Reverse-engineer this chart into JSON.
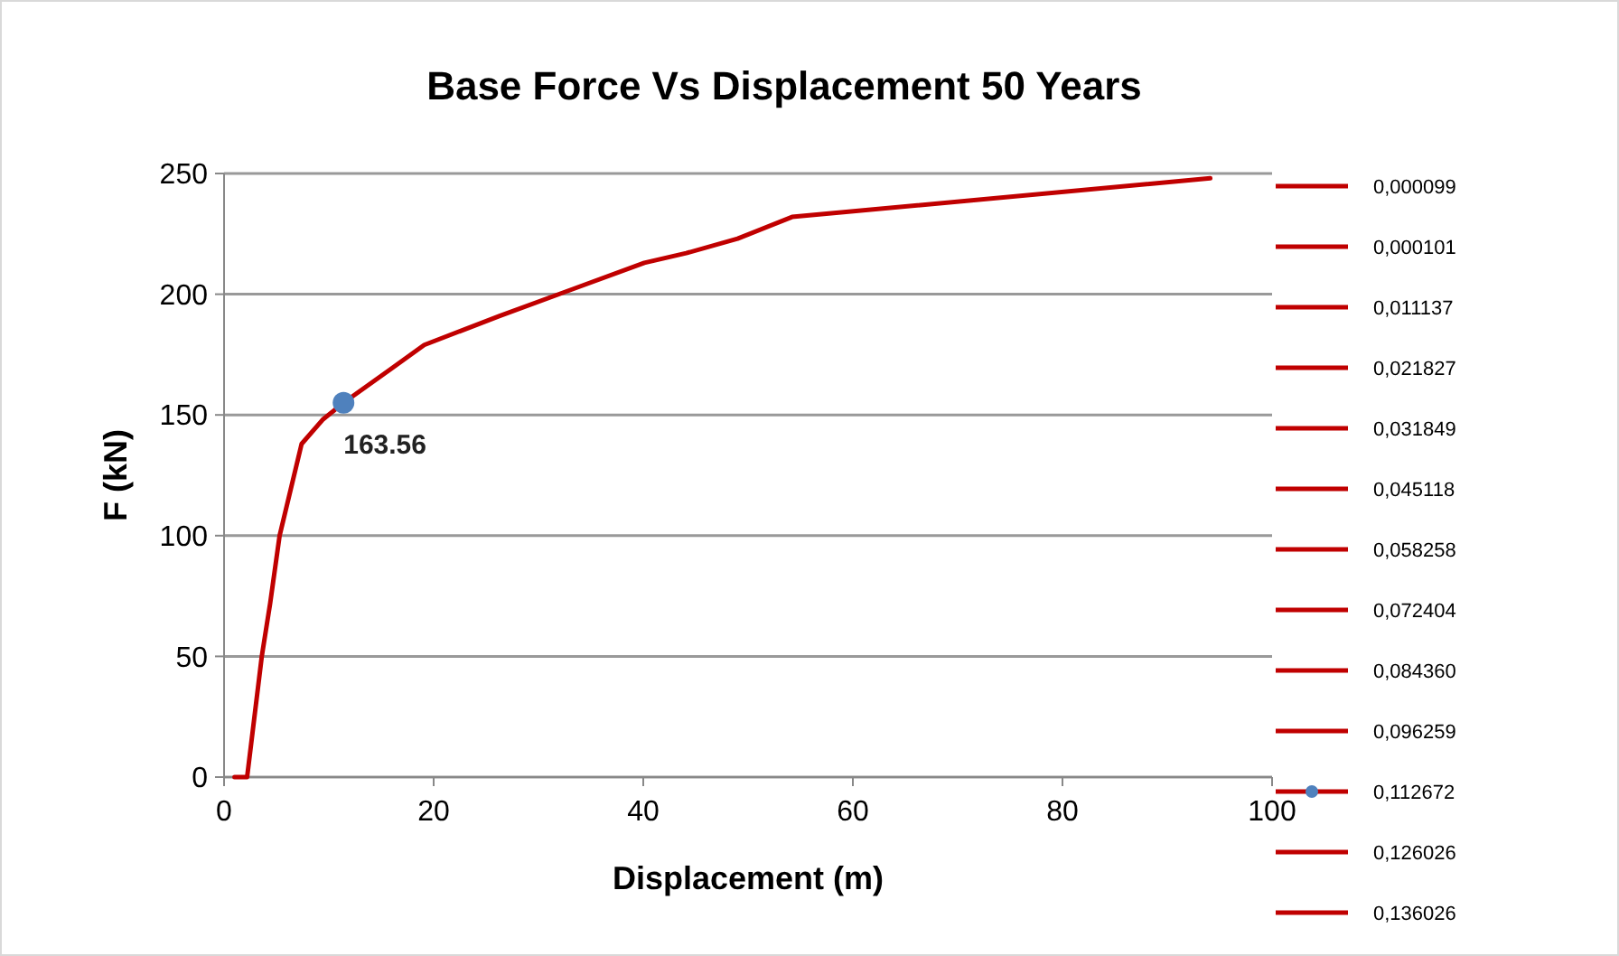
{
  "chart_data": {
    "type": "line",
    "title": "Base Force Vs Displacement 50 Years",
    "xlabel": "Displacement (m)",
    "ylabel": "F (kN)",
    "xlim": [
      0,
      100
    ],
    "xticks": [
      0,
      20,
      40,
      60,
      80,
      100
    ],
    "ylim": [
      0,
      250
    ],
    "yticks": [
      0,
      50,
      100,
      150,
      200,
      250
    ],
    "grid": "y",
    "legend": "right",
    "series": [
      {
        "name": "0,000099",
        "color": "#c00000"
      },
      {
        "name": "0,000101",
        "color": "#c00000"
      },
      {
        "name": "0,011137",
        "color": "#c00000"
      },
      {
        "name": "0,021827",
        "color": "#c00000"
      },
      {
        "name": "0,031849",
        "color": "#c00000"
      },
      {
        "name": "0,045118",
        "color": "#c00000"
      },
      {
        "name": "0,058258",
        "color": "#c00000"
      },
      {
        "name": "0,072404",
        "color": "#c00000"
      },
      {
        "name": "0,084360",
        "color": "#c00000"
      },
      {
        "name": "0,096259",
        "color": "#c00000"
      },
      {
        "name": "0,112672",
        "color": "#c00000",
        "x": [
          1,
          2.2,
          3.6,
          4.4,
          5.3,
          7.4,
          9.4,
          11.4,
          15.9,
          19.1,
          26.3,
          33.2,
          40.1,
          44.1,
          49,
          54.2,
          94.1
        ],
        "values": [
          0,
          0,
          50,
          72,
          100,
          138,
          148,
          155,
          169,
          179,
          191,
          202,
          213,
          217,
          223,
          232,
          248
        ]
      },
      {
        "name": "0,126026",
        "color": "#c00000"
      },
      {
        "name": "0,136026",
        "color": "#c00000"
      },
      {
        "type": "scatter",
        "color": "#4f81bd",
        "x": [
          11.4
        ],
        "values": [
          155
        ]
      }
    ],
    "annotations": [
      {
        "text": "163.56",
        "x": 11.4,
        "y": 155
      }
    ]
  }
}
